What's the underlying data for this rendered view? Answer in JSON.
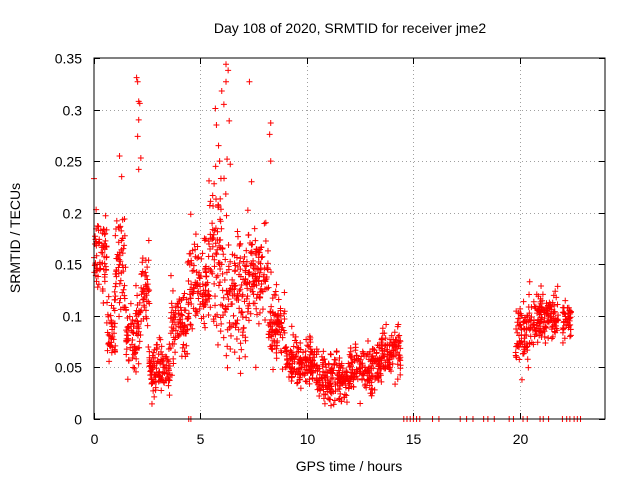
{
  "chart_data": {
    "type": "scatter",
    "title": "Day 108 of 2020, SRMTID for receiver jme2",
    "xlabel": "GPS time / hours",
    "ylabel": "SRMTID / TECUs",
    "xlim": [
      0,
      24
    ],
    "ylim": [
      0,
      0.35
    ],
    "xticks": [
      0,
      5,
      10,
      15,
      20
    ],
    "xtick_labels": [
      "0",
      "5",
      "10",
      "15",
      "20"
    ],
    "yticks": [
      0,
      0.05,
      0.1,
      0.15,
      0.2,
      0.25,
      0.3,
      0.35
    ],
    "ytick_labels": [
      "0",
      "0.05",
      "0.1",
      "0.15",
      "0.2",
      "0.25",
      "0.3",
      "0.35"
    ],
    "grid": true,
    "marker": "+",
    "color": "#ff0000",
    "segments": [
      {
        "x0": 0.0,
        "x1": 0.6,
        "center": 0.16,
        "spread": 0.03
      },
      {
        "x0": 0.6,
        "x1": 1.0,
        "center": 0.09,
        "spread": 0.03
      },
      {
        "x0": 1.0,
        "x1": 1.5,
        "center": 0.15,
        "spread": 0.05
      },
      {
        "x0": 1.5,
        "x1": 2.2,
        "center": 0.08,
        "spread": 0.03
      },
      {
        "x0": 2.2,
        "x1": 2.6,
        "center": 0.12,
        "spread": 0.04
      },
      {
        "x0": 2.6,
        "x1": 3.6,
        "center": 0.05,
        "spread": 0.02
      },
      {
        "x0": 3.6,
        "x1": 4.4,
        "center": 0.09,
        "spread": 0.03
      },
      {
        "x0": 4.4,
        "x1": 5.4,
        "center": 0.13,
        "spread": 0.04
      },
      {
        "x0": 5.4,
        "x1": 6.2,
        "center": 0.16,
        "spread": 0.06
      },
      {
        "x0": 6.2,
        "x1": 7.2,
        "center": 0.12,
        "spread": 0.05
      },
      {
        "x0": 7.2,
        "x1": 8.2,
        "center": 0.14,
        "spread": 0.04
      },
      {
        "x0": 8.2,
        "x1": 9.0,
        "center": 0.09,
        "spread": 0.03
      },
      {
        "x0": 9.0,
        "x1": 10.5,
        "center": 0.055,
        "spread": 0.02
      },
      {
        "x0": 10.5,
        "x1": 12.0,
        "center": 0.04,
        "spread": 0.02
      },
      {
        "x0": 12.0,
        "x1": 13.5,
        "center": 0.05,
        "spread": 0.02
      },
      {
        "x0": 13.5,
        "x1": 14.4,
        "center": 0.065,
        "spread": 0.02
      },
      {
        "x0": 19.8,
        "x1": 20.4,
        "center": 0.08,
        "spread": 0.025
      },
      {
        "x0": 20.4,
        "x1": 21.0,
        "center": 0.1,
        "spread": 0.02
      },
      {
        "x0": 21.0,
        "x1": 21.8,
        "center": 0.1,
        "spread": 0.02
      },
      {
        "x0": 22.0,
        "x1": 22.4,
        "center": 0.095,
        "spread": 0.015
      }
    ],
    "outliers": [
      {
        "x": 0.0,
        "y": 0.233
      },
      {
        "x": 0.1,
        "y": 0.203
      },
      {
        "x": 1.2,
        "y": 0.255
      },
      {
        "x": 1.3,
        "y": 0.235
      },
      {
        "x": 2.0,
        "y": 0.331
      },
      {
        "x": 2.05,
        "y": 0.327
      },
      {
        "x": 2.1,
        "y": 0.308
      },
      {
        "x": 2.15,
        "y": 0.306
      },
      {
        "x": 2.1,
        "y": 0.29
      },
      {
        "x": 2.05,
        "y": 0.274
      },
      {
        "x": 2.2,
        "y": 0.253
      },
      {
        "x": 2.1,
        "y": 0.242
      },
      {
        "x": 5.7,
        "y": 0.301
      },
      {
        "x": 5.75,
        "y": 0.285
      },
      {
        "x": 5.85,
        "y": 0.265
      },
      {
        "x": 6.0,
        "y": 0.318
      },
      {
        "x": 6.1,
        "y": 0.305
      },
      {
        "x": 6.2,
        "y": 0.344
      },
      {
        "x": 6.3,
        "y": 0.338
      },
      {
        "x": 6.2,
        "y": 0.327
      },
      {
        "x": 6.35,
        "y": 0.289
      },
      {
        "x": 6.25,
        "y": 0.252
      },
      {
        "x": 6.4,
        "y": 0.247
      },
      {
        "x": 5.9,
        "y": 0.25
      },
      {
        "x": 7.3,
        "y": 0.327
      },
      {
        "x": 8.3,
        "y": 0.287
      },
      {
        "x": 8.25,
        "y": 0.276
      },
      {
        "x": 8.3,
        "y": 0.25
      },
      {
        "x": 7.4,
        "y": 0.23
      },
      {
        "x": 7.6,
        "y": 0.05
      },
      {
        "x": 10.8,
        "y": 0.02
      },
      {
        "x": 12.5,
        "y": 0.015
      },
      {
        "x": 20.1,
        "y": 0.038
      }
    ],
    "zero_values_x": [
      4.45,
      4.55,
      14.55,
      14.7,
      14.85,
      15.0,
      15.15,
      15.3,
      15.9,
      16.2,
      17.2,
      17.5,
      17.8,
      18.3,
      18.5,
      18.8,
      19.5,
      19.7,
      20.15,
      20.35,
      20.95,
      21.1,
      21.35,
      22.0,
      22.2,
      22.35,
      22.55,
      22.7,
      22.85
    ]
  }
}
